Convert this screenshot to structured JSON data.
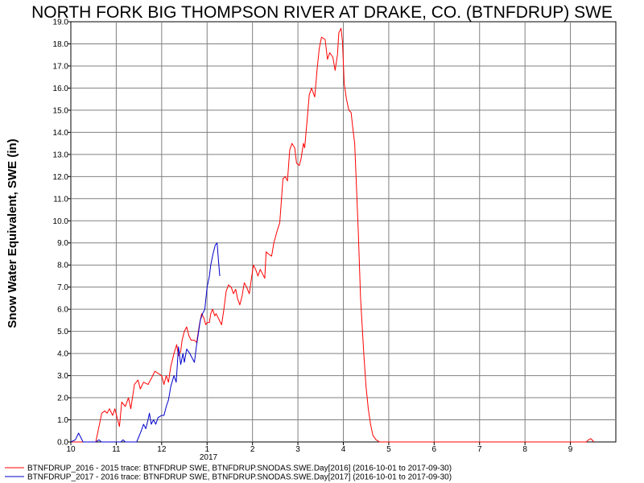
{
  "chart_data": {
    "type": "line",
    "title": "NORTH FORK BIG THOMPSON RIVER AT DRAKE, CO. (BTNFDRUP) SWE",
    "ylabel": "Snow Water Equivalent, SWE (in)",
    "xlabel": "",
    "x_year_label": "2017",
    "ylim": [
      0,
      19
    ],
    "x_ticks": [
      "10",
      "11",
      "12",
      "1",
      "2",
      "3",
      "4",
      "5",
      "6",
      "7",
      "8",
      "9"
    ],
    "y_ticks": [
      "0.0",
      "1.0",
      "2.0",
      "3.0",
      "4.0",
      "5.0",
      "6.0",
      "7.0",
      "8.0",
      "9.0",
      "10.0",
      "11.0",
      "12.0",
      "13.0",
      "14.0",
      "15.0",
      "16.0",
      "17.0",
      "18.0",
      "19.0"
    ],
    "grid": true,
    "legend_position": "bottom",
    "x_unit": "month offset from Oct 1 (0 = Oct, 1 = Nov, ...)",
    "series": [
      {
        "name": "BTNFDRUP_2016 - 2015 trace: BTNFDRUP SWE, BTNFDRUP.SNODAS.SWE.Day[2016] (2016-10-01 to 2017-09-30)",
        "color": "#ff0000",
        "points": [
          [
            0,
            0
          ],
          [
            0.3,
            0
          ],
          [
            0.55,
            0
          ],
          [
            0.68,
            1.3
          ],
          [
            0.75,
            1.4
          ],
          [
            0.8,
            1.3
          ],
          [
            0.85,
            1.5
          ],
          [
            0.92,
            1.2
          ],
          [
            0.97,
            1.5
          ],
          [
            1.03,
            1.0
          ],
          [
            1.07,
            0.7
          ],
          [
            1.12,
            1.8
          ],
          [
            1.2,
            1.6
          ],
          [
            1.27,
            2.0
          ],
          [
            1.32,
            1.5
          ],
          [
            1.4,
            2.6
          ],
          [
            1.48,
            2.8
          ],
          [
            1.53,
            2.4
          ],
          [
            1.6,
            2.7
          ],
          [
            1.7,
            2.6
          ],
          [
            1.78,
            2.9
          ],
          [
            1.85,
            3.2
          ],
          [
            1.92,
            3.1
          ],
          [
            2.0,
            3.0
          ],
          [
            2.05,
            2.6
          ],
          [
            2.1,
            3.0
          ],
          [
            2.15,
            2.7
          ],
          [
            2.2,
            3.4
          ],
          [
            2.27,
            4.0
          ],
          [
            2.33,
            4.4
          ],
          [
            2.37,
            3.9
          ],
          [
            2.42,
            4.1
          ],
          [
            2.45,
            4.6
          ],
          [
            2.5,
            5.0
          ],
          [
            2.55,
            5.2
          ],
          [
            2.6,
            4.8
          ],
          [
            2.65,
            4.6
          ],
          [
            2.72,
            4.6
          ],
          [
            2.77,
            4.5
          ],
          [
            2.83,
            5.3
          ],
          [
            2.88,
            5.8
          ],
          [
            2.93,
            5.6
          ],
          [
            2.97,
            5.3
          ],
          [
            3.0,
            5.4
          ],
          [
            3.05,
            5.4
          ],
          [
            3.08,
            5.8
          ],
          [
            3.12,
            6.0
          ],
          [
            3.17,
            5.7
          ],
          [
            3.2,
            5.8
          ],
          [
            3.27,
            5.5
          ],
          [
            3.32,
            5.3
          ],
          [
            3.37,
            6.0
          ],
          [
            3.42,
            6.8
          ],
          [
            3.47,
            7.1
          ],
          [
            3.53,
            7.0
          ],
          [
            3.58,
            6.7
          ],
          [
            3.63,
            6.9
          ],
          [
            3.67,
            6.5
          ],
          [
            3.72,
            6.2
          ],
          [
            3.77,
            6.6
          ],
          [
            3.82,
            7.2
          ],
          [
            3.87,
            7.0
          ],
          [
            3.93,
            6.7
          ],
          [
            3.97,
            7.3
          ],
          [
            4.02,
            8.0
          ],
          [
            4.07,
            7.8
          ],
          [
            4.12,
            7.5
          ],
          [
            4.17,
            7.8
          ],
          [
            4.22,
            7.6
          ],
          [
            4.27,
            7.4
          ],
          [
            4.3,
            8.6
          ],
          [
            4.35,
            8.5
          ],
          [
            4.42,
            8.4
          ],
          [
            4.47,
            9.0
          ],
          [
            4.55,
            9.6
          ],
          [
            4.6,
            9.9
          ],
          [
            4.67,
            11.9
          ],
          [
            4.72,
            12.0
          ],
          [
            4.77,
            11.8
          ],
          [
            4.82,
            13.2
          ],
          [
            4.87,
            13.5
          ],
          [
            4.93,
            13.3
          ],
          [
            4.97,
            12.6
          ],
          [
            5.03,
            12.5
          ],
          [
            5.07,
            12.8
          ],
          [
            5.12,
            13.5
          ],
          [
            5.15,
            13.3
          ],
          [
            5.2,
            14.5
          ],
          [
            5.25,
            15.7
          ],
          [
            5.3,
            16.0
          ],
          [
            5.37,
            15.6
          ],
          [
            5.42,
            16.8
          ],
          [
            5.47,
            17.8
          ],
          [
            5.52,
            18.3
          ],
          [
            5.6,
            18.2
          ],
          [
            5.65,
            17.3
          ],
          [
            5.7,
            17.6
          ],
          [
            5.77,
            17.4
          ],
          [
            5.82,
            16.8
          ],
          [
            5.87,
            17.5
          ],
          [
            5.9,
            18.5
          ],
          [
            5.95,
            18.7
          ],
          [
            5.98,
            18.1
          ],
          [
            6.02,
            16.2
          ],
          [
            6.07,
            15.5
          ],
          [
            6.12,
            15.0
          ],
          [
            6.17,
            14.9
          ],
          [
            6.22,
            14.0
          ],
          [
            6.25,
            13.5
          ],
          [
            6.28,
            12.0
          ],
          [
            6.33,
            9.5
          ],
          [
            6.38,
            6.5
          ],
          [
            6.45,
            4.0
          ],
          [
            6.5,
            2.5
          ],
          [
            6.55,
            1.5
          ],
          [
            6.6,
            0.8
          ],
          [
            6.65,
            0.3
          ],
          [
            6.72,
            0.1
          ],
          [
            6.8,
            0
          ],
          [
            7.5,
            0
          ],
          [
            9.8,
            0
          ],
          [
            11.35,
            0
          ],
          [
            11.4,
            0.1
          ],
          [
            11.45,
            0.15
          ],
          [
            11.52,
            0
          ]
        ]
      },
      {
        "name": "BTNFDRUP_2017 - 2016 trace: BTNFDRUP SWE, BTNFDRUP.SNODAS.SWE.Day[2017] (2016-10-01 to 2017-09-30)",
        "color": "#0000cc",
        "points": [
          [
            0,
            0
          ],
          [
            0.1,
            0.1
          ],
          [
            0.17,
            0.4
          ],
          [
            0.22,
            0.2
          ],
          [
            0.27,
            0
          ],
          [
            0.35,
            0
          ],
          [
            0.45,
            0
          ],
          [
            0.55,
            0
          ],
          [
            0.62,
            0.1
          ],
          [
            0.67,
            0
          ],
          [
            1.0,
            0
          ],
          [
            1.1,
            0
          ],
          [
            1.15,
            0.1
          ],
          [
            1.2,
            0
          ],
          [
            1.45,
            0
          ],
          [
            1.55,
            0.5
          ],
          [
            1.6,
            0.8
          ],
          [
            1.65,
            0.6
          ],
          [
            1.7,
            1.0
          ],
          [
            1.73,
            1.3
          ],
          [
            1.77,
            0.8
          ],
          [
            1.82,
            1.0
          ],
          [
            1.87,
            0.8
          ],
          [
            1.92,
            1.1
          ],
          [
            2.0,
            1.2
          ],
          [
            2.05,
            1.2
          ],
          [
            2.1,
            1.6
          ],
          [
            2.15,
            1.9
          ],
          [
            2.2,
            2.5
          ],
          [
            2.27,
            3.0
          ],
          [
            2.32,
            2.7
          ],
          [
            2.37,
            4.3
          ],
          [
            2.42,
            3.5
          ],
          [
            2.47,
            4.0
          ],
          [
            2.5,
            3.6
          ],
          [
            2.55,
            4.2
          ],
          [
            2.62,
            4.0
          ],
          [
            2.67,
            3.8
          ],
          [
            2.72,
            3.6
          ],
          [
            2.77,
            4.4
          ],
          [
            2.8,
            4.8
          ],
          [
            2.85,
            5.5
          ],
          [
            2.9,
            5.8
          ],
          [
            2.95,
            6.0
          ],
          [
            3.0,
            7.0
          ],
          [
            3.05,
            7.5
          ],
          [
            3.08,
            8.0
          ],
          [
            3.13,
            8.5
          ],
          [
            3.18,
            8.9
          ],
          [
            3.22,
            9.0
          ],
          [
            3.25,
            8.2
          ],
          [
            3.28,
            7.5
          ]
        ]
      }
    ]
  }
}
